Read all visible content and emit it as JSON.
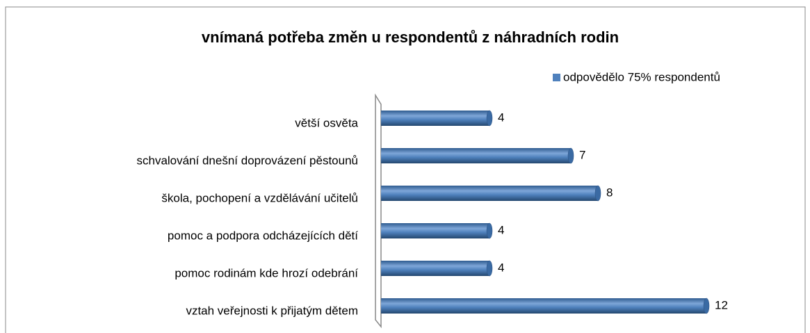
{
  "chart_data": {
    "type": "bar",
    "orientation": "horizontal",
    "title": "vnímaná potřeba změn u respondentů z náhradních rodin",
    "categories": [
      "větší osvěta",
      "schvalování dnešní doprovázení pěstounů",
      "škola, pochopení a vzdělávání učitelů",
      "pomoc a podpora odcházejících dětí",
      "pomoc rodinám kde hrozí odebrání",
      "vztah veřejnosti k přijatým dětem"
    ],
    "series": [
      {
        "name": "odpovědělo 75% respondentů",
        "color": "#4f81bd",
        "values": [
          4,
          7,
          8,
          4,
          4,
          12
        ]
      }
    ],
    "legend": "top-right"
  }
}
